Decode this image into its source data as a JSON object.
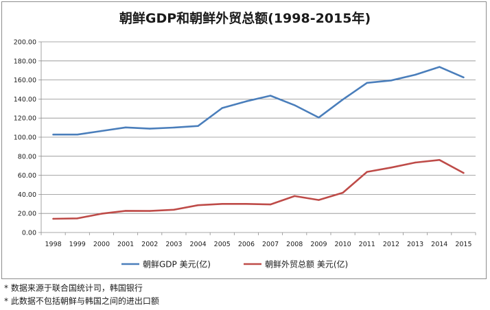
{
  "chart_data": {
    "type": "line",
    "title": "朝鲜GDP和朝鲜外贸总额(1998-2015年)",
    "xlabel": "",
    "ylabel": "",
    "categories": [
      "1998",
      "1999",
      "2000",
      "2001",
      "2002",
      "2003",
      "2004",
      "2005",
      "2006",
      "2007",
      "2008",
      "2009",
      "2010",
      "2011",
      "2012",
      "2013",
      "2014",
      "2015"
    ],
    "ylim": [
      0,
      200
    ],
    "yticks": [
      "0.00",
      "20.00",
      "40.00",
      "60.00",
      "80.00",
      "100.00",
      "120.00",
      "140.00",
      "160.00",
      "180.00",
      "200.00"
    ],
    "grid": true,
    "legend_position": "bottom",
    "series": [
      {
        "name": "朝鲜GDP 美元(亿)",
        "color": "#4a7ebb",
        "values": [
          102.7,
          102.7,
          106.5,
          110.2,
          108.9,
          110.1,
          111.7,
          130.6,
          137.6,
          143.5,
          133.5,
          120.6,
          139.5,
          157.0,
          159.5,
          165.5,
          173.7,
          162.7
        ]
      },
      {
        "name": "朝鲜外贸总额 美元(亿)",
        "color": "#be4b48",
        "values": [
          14.4,
          14.8,
          19.7,
          22.7,
          22.6,
          23.9,
          28.6,
          30.0,
          30.0,
          29.4,
          38.2,
          34.1,
          41.7,
          63.6,
          68.1,
          73.4,
          76.1,
          62.5
        ]
      }
    ]
  },
  "notes": [
    "* 数据来源于联合国统计司，韩国银行",
    "* 此数据不包括朝鲜与韩国之间的进出口额"
  ]
}
